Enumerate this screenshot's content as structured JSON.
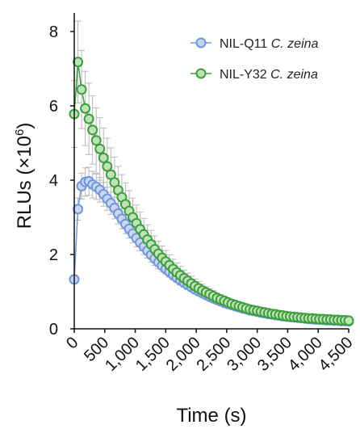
{
  "chart_data": {
    "type": "line",
    "xlabel": "Time (s)",
    "ylabel_main": "RLUs (×10",
    "ylabel_exp": "6",
    "ylabel_close": ")",
    "xlim": [
      0,
      4500
    ],
    "ylim": [
      0,
      8.5
    ],
    "x_ticks": [
      0,
      500,
      1000,
      1500,
      2000,
      2500,
      3000,
      3500,
      4000,
      4500
    ],
    "x_tick_labels": [
      "0",
      "500",
      "1,000",
      "1,500",
      "2,000",
      "2,500",
      "3,000",
      "3,500",
      "4,000",
      "4,500"
    ],
    "y_ticks": [
      0,
      2,
      4,
      6,
      8
    ],
    "y_tick_labels": [
      "0",
      "2",
      "4",
      "6",
      "8"
    ],
    "grid": false,
    "legend_position": "top-right",
    "series": [
      {
        "name_main": "NIL-Q11 ",
        "name_italic": "C. zeina",
        "line_color": "#6f98dc",
        "fill_color": "#c8d6f0",
        "x": [
          0,
          60,
          120,
          180,
          240,
          300,
          360,
          420,
          480,
          540,
          600,
          660,
          720,
          780,
          840,
          900,
          960,
          1020,
          1080,
          1140,
          1200,
          1260,
          1320,
          1380,
          1440,
          1500,
          1560,
          1620,
          1680,
          1740,
          1800,
          1860,
          1920,
          1980,
          2040,
          2100,
          2160,
          2220,
          2280,
          2340,
          2400,
          2460,
          2520,
          2580,
          2640,
          2700,
          2760,
          2820,
          2880,
          2940,
          3000,
          3060,
          3120,
          3180,
          3240,
          3300,
          3360,
          3420,
          3480,
          3540,
          3600,
          3660,
          3720,
          3780,
          3840,
          3900,
          3960,
          4020,
          4080,
          4140,
          4200,
          4260,
          4320,
          4380,
          4440,
          4500
        ],
        "y": [
          1.33,
          3.22,
          3.84,
          3.95,
          3.97,
          3.88,
          3.82,
          3.74,
          3.62,
          3.5,
          3.38,
          3.25,
          3.1,
          2.96,
          2.82,
          2.69,
          2.56,
          2.44,
          2.32,
          2.21,
          2.1,
          1.99,
          1.89,
          1.79,
          1.7,
          1.61,
          1.53,
          1.45,
          1.38,
          1.31,
          1.24,
          1.18,
          1.12,
          1.06,
          1.01,
          0.96,
          0.91,
          0.86,
          0.82,
          0.78,
          0.74,
          0.7,
          0.67,
          0.64,
          0.61,
          0.58,
          0.55,
          0.53,
          0.5,
          0.48,
          0.46,
          0.44,
          0.42,
          0.4,
          0.39,
          0.37,
          0.36,
          0.34,
          0.33,
          0.32,
          0.31,
          0.3,
          0.29,
          0.28,
          0.27,
          0.26,
          0.25,
          0.25,
          0.24,
          0.23,
          0.23,
          0.22,
          0.22,
          0.21,
          0.21,
          0.2
        ],
        "err": [
          0.12,
          0.3,
          0.35,
          0.38,
          0.38,
          0.36,
          0.34,
          0.33,
          0.32,
          0.31,
          0.3,
          0.29,
          0.28,
          0.27,
          0.26,
          0.25,
          0.24,
          0.23,
          0.22,
          0.21,
          0.2,
          0.19,
          0.18,
          0.17,
          0.16,
          0.15,
          0.14,
          0.14,
          0.13,
          0.13,
          0.12,
          0.12,
          0.11,
          0.11,
          0.1,
          0.1,
          0.09,
          0.09,
          0.09,
          0.08,
          0.08,
          0.08,
          0.07,
          0.07,
          0.07,
          0.07,
          0.06,
          0.06,
          0.06,
          0.06,
          0.05,
          0.05,
          0.05,
          0.05,
          0.05,
          0.05,
          0.04,
          0.04,
          0.04,
          0.04,
          0.04,
          0.04,
          0.04,
          0.04,
          0.04,
          0.03,
          0.03,
          0.03,
          0.03,
          0.03,
          0.03,
          0.03,
          0.03,
          0.03,
          0.03,
          0.03
        ]
      },
      {
        "name_main": "NIL-Y32 ",
        "name_italic": "C. zeina",
        "line_color": "#3d9e3d",
        "fill_color": "#bfe3b7",
        "x": [
          0,
          60,
          120,
          180,
          240,
          300,
          360,
          420,
          480,
          540,
          600,
          660,
          720,
          780,
          840,
          900,
          960,
          1020,
          1080,
          1140,
          1200,
          1260,
          1320,
          1380,
          1440,
          1500,
          1560,
          1620,
          1680,
          1740,
          1800,
          1860,
          1920,
          1980,
          2040,
          2100,
          2160,
          2220,
          2280,
          2340,
          2400,
          2460,
          2520,
          2580,
          2640,
          2700,
          2760,
          2820,
          2880,
          2940,
          3000,
          3060,
          3120,
          3180,
          3240,
          3300,
          3360,
          3420,
          3480,
          3540,
          3600,
          3660,
          3720,
          3780,
          3840,
          3900,
          3960,
          4020,
          4080,
          4140,
          4200,
          4260,
          4320,
          4380,
          4440,
          4500
        ],
        "y": [
          5.78,
          7.18,
          6.44,
          5.93,
          5.65,
          5.35,
          5.07,
          4.84,
          4.6,
          4.37,
          4.15,
          3.94,
          3.73,
          3.54,
          3.35,
          3.17,
          3.0,
          2.84,
          2.68,
          2.54,
          2.4,
          2.27,
          2.14,
          2.02,
          1.91,
          1.81,
          1.71,
          1.61,
          1.52,
          1.44,
          1.36,
          1.29,
          1.22,
          1.15,
          1.09,
          1.03,
          0.98,
          0.93,
          0.88,
          0.83,
          0.79,
          0.75,
          0.71,
          0.67,
          0.64,
          0.61,
          0.58,
          0.55,
          0.52,
          0.5,
          0.48,
          0.46,
          0.44,
          0.42,
          0.4,
          0.39,
          0.37,
          0.36,
          0.34,
          0.33,
          0.32,
          0.31,
          0.3,
          0.29,
          0.28,
          0.28,
          0.27,
          0.26,
          0.26,
          0.25,
          0.25,
          0.24,
          0.24,
          0.23,
          0.23,
          0.22
        ],
        "err": [
          0.9,
          1.1,
          1.05,
          1.0,
          0.96,
          0.92,
          0.88,
          0.84,
          0.8,
          0.76,
          0.72,
          0.68,
          0.64,
          0.61,
          0.58,
          0.55,
          0.52,
          0.49,
          0.46,
          0.43,
          0.4,
          0.38,
          0.36,
          0.34,
          0.32,
          0.3,
          0.28,
          0.26,
          0.25,
          0.24,
          0.22,
          0.21,
          0.2,
          0.19,
          0.18,
          0.17,
          0.16,
          0.15,
          0.15,
          0.14,
          0.13,
          0.13,
          0.12,
          0.12,
          0.11,
          0.11,
          0.1,
          0.1,
          0.09,
          0.09,
          0.09,
          0.08,
          0.08,
          0.08,
          0.07,
          0.07,
          0.07,
          0.07,
          0.06,
          0.06,
          0.06,
          0.06,
          0.06,
          0.05,
          0.05,
          0.05,
          0.05,
          0.05,
          0.05,
          0.05,
          0.04,
          0.04,
          0.04,
          0.04,
          0.04,
          0.04
        ]
      }
    ]
  }
}
